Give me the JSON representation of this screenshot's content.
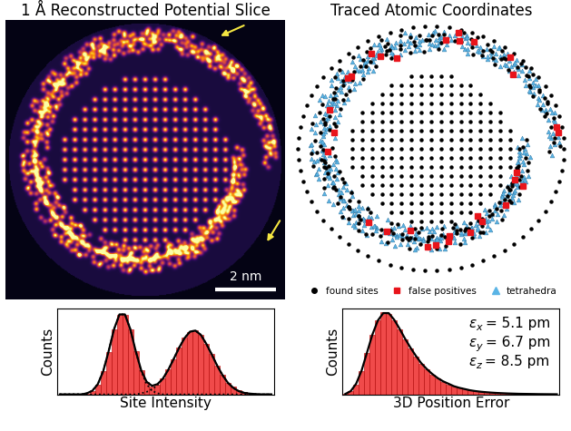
{
  "chart_data": [
    {
      "type": "image",
      "title": "1 Å Reconstructed Potential Slice",
      "annotations": [
        "2 nm"
      ]
    },
    {
      "type": "diagram",
      "title": "Traced Atomic Coordinates",
      "legend": "lower center",
      "series": [
        {
          "name": "found sites",
          "color": "#000000",
          "marker": "circle"
        },
        {
          "name": "false positives",
          "color": "#e8141b",
          "marker": "square"
        },
        {
          "name": "tetrahedra",
          "color": "#5ab4e5",
          "marker": "triangle"
        }
      ]
    },
    {
      "type": "histogram",
      "xlabel": "Site Intensity",
      "ylabel": "Counts",
      "color": "#f04a4a",
      "xlim": [
        0,
        1
      ],
      "ylim": [
        0,
        105
      ],
      "tick_labels": false,
      "bins": [
        0,
        0.025,
        0.05,
        0.075,
        0.1,
        0.125,
        0.15,
        0.175,
        0.2,
        0.225,
        0.25,
        0.275,
        0.3,
        0.325,
        0.35,
        0.375,
        0.4,
        0.425,
        0.45,
        0.475,
        0.5,
        0.525,
        0.55,
        0.575,
        0.6,
        0.625,
        0.65,
        0.675,
        0.7,
        0.725,
        0.75,
        0.775,
        0.8,
        0.825,
        0.85,
        0.875,
        0.9,
        0.925,
        0.95,
        0.975,
        1.0
      ],
      "counts": [
        0,
        0,
        0,
        0,
        1,
        1,
        4,
        12,
        28,
        52,
        79,
        97,
        97,
        79,
        53,
        29,
        15,
        10,
        12,
        19,
        30,
        43,
        57,
        69,
        76,
        78,
        73,
        62,
        49,
        35,
        24,
        14,
        9,
        5,
        3,
        2,
        1,
        1,
        0,
        0
      ],
      "series": [
        {
          "type": "line",
          "line_style": "dotted",
          "color": "#000000",
          "x": [
            0.0125,
            0.0375,
            0.0625,
            0.0875,
            0.1125,
            0.1375,
            0.1625,
            0.1875,
            0.2125,
            0.2375,
            0.2625,
            0.2875,
            0.3125,
            0.3375,
            0.3625,
            0.3875,
            0.4125,
            0.4375,
            0.4625,
            0.4875,
            0.5125,
            0.5375,
            0.5625,
            0.5875,
            0.6125,
            0.6375,
            0.6625,
            0.6875,
            0.7125,
            0.7375,
            0.7625,
            0.7875,
            0.8125,
            0.8375,
            0.8625,
            0.8875,
            0.9125,
            0.9375,
            0.9625,
            0.9875
          ],
          "values": [
            0,
            0,
            0,
            0,
            0,
            1.3,
            4.4,
            12.4,
            28.2,
            52.5,
            79.4,
            97.4,
            97.4,
            79.4,
            52.5,
            28.2,
            12.4,
            4.4,
            1.3,
            0,
            0,
            0,
            0,
            0,
            0,
            0,
            0,
            0,
            0,
            0,
            0,
            0,
            0,
            0,
            0,
            0,
            0,
            0,
            0,
            0
          ]
        },
        {
          "type": "line",
          "line_style": "dotted",
          "color": "#000000",
          "x": [
            0.0125,
            0.0375,
            0.0625,
            0.0875,
            0.1125,
            0.1375,
            0.1625,
            0.1875,
            0.2125,
            0.2375,
            0.2625,
            0.2875,
            0.3125,
            0.3375,
            0.3625,
            0.3875,
            0.4125,
            0.4375,
            0.4625,
            0.4875,
            0.5125,
            0.5375,
            0.5625,
            0.5875,
            0.6125,
            0.6375,
            0.6625,
            0.6875,
            0.7125,
            0.7375,
            0.7625,
            0.7875,
            0.8125,
            0.8375,
            0.8625,
            0.8875,
            0.9125,
            0.9375,
            0.9625,
            0.9875
          ],
          "values": [
            0,
            0,
            0,
            0,
            0,
            0,
            0,
            0,
            0,
            0,
            0,
            0,
            0,
            0,
            0,
            1.3,
            3.0,
            6.0,
            11.2,
            19.1,
            30.0,
            43.2,
            56.9,
            68.6,
            76.4,
            77.7,
            72.5,
            61.6,
            48.8,
            35.1,
            23.4,
            14.0,
            7.8,
            3.9,
            1.8,
            0.9,
            0.4,
            0,
            0,
            0
          ]
        },
        {
          "type": "line",
          "line_style": "solid",
          "color": "#000000",
          "x": [
            0.0125,
            0.0375,
            0.0625,
            0.0875,
            0.1125,
            0.1375,
            0.1625,
            0.1875,
            0.2125,
            0.2375,
            0.2625,
            0.2875,
            0.3125,
            0.3375,
            0.3625,
            0.3875,
            0.4125,
            0.4375,
            0.4625,
            0.4875,
            0.5125,
            0.5375,
            0.5625,
            0.5875,
            0.6125,
            0.6375,
            0.6625,
            0.6875,
            0.7125,
            0.7375,
            0.7625,
            0.7875,
            0.8125,
            0.8375,
            0.8625,
            0.8875,
            0.9125,
            0.9375,
            0.9625,
            0.9875
          ],
          "values": [
            0,
            0,
            0,
            0,
            0,
            1.3,
            4.4,
            12.4,
            28.2,
            52.5,
            79.4,
            97.4,
            97.4,
            79.4,
            52.5,
            29.5,
            15.4,
            10.4,
            12.5,
            19.1,
            30.0,
            43.2,
            56.9,
            68.6,
            76.4,
            77.7,
            72.5,
            61.6,
            48.8,
            35.1,
            23.4,
            14.0,
            7.8,
            3.9,
            1.8,
            0.9,
            0.4,
            0,
            0,
            0
          ]
        }
      ]
    },
    {
      "type": "histogram",
      "xlabel": "3D Position Error",
      "ylabel": "Counts",
      "color": "#f04a4a",
      "xlim": [
        0,
        1
      ],
      "ylim": [
        0,
        105
      ],
      "tick_labels": false,
      "bins": [
        0,
        0.025,
        0.05,
        0.075,
        0.1,
        0.125,
        0.15,
        0.175,
        0.2,
        0.225,
        0.25,
        0.275,
        0.3,
        0.325,
        0.35,
        0.375,
        0.4,
        0.425,
        0.45,
        0.475,
        0.5,
        0.525,
        0.55,
        0.575,
        0.6,
        0.625,
        0.65,
        0.675,
        0.7,
        0.725,
        0.75,
        0.775,
        0.8,
        0.825,
        0.85,
        0.875,
        0.9,
        0.925,
        0.95,
        0.975,
        1.0
      ],
      "counts": [
        1,
        4,
        12,
        28,
        50,
        72,
        90,
        100,
        98,
        90,
        79,
        67,
        56,
        46,
        37,
        30,
        24,
        19,
        15,
        12,
        10,
        8,
        6,
        5,
        4,
        3,
        3,
        2,
        2,
        2,
        1,
        1,
        1,
        1,
        1,
        0,
        0,
        0,
        0,
        0
      ],
      "series": [
        {
          "type": "line",
          "line_style": "solid",
          "color": "#000000",
          "x": [
            0.0125,
            0.0375,
            0.0625,
            0.0875,
            0.1125,
            0.1375,
            0.1625,
            0.1875,
            0.2125,
            0.2375,
            0.2625,
            0.2875,
            0.3125,
            0.3375,
            0.3625,
            0.3875,
            0.4125,
            0.4375,
            0.4625,
            0.4875,
            0.5125,
            0.5375,
            0.5625,
            0.5875,
            0.6125,
            0.6375,
            0.6625,
            0.6875,
            0.7125,
            0.7375,
            0.7625,
            0.7875,
            0.8125,
            0.8375,
            0.8625,
            0.8875,
            0.9125,
            0.9375,
            0.9625,
            0.9875
          ],
          "values": [
            0.5,
            4,
            13,
            29,
            51,
            73,
            90,
            99,
            99,
            91,
            80,
            68,
            57,
            47,
            38,
            31,
            25,
            20,
            16,
            13,
            10,
            8,
            6.5,
            5,
            4,
            3.2,
            2.6,
            2.1,
            1.7,
            1.4,
            1.1,
            0.9,
            0.7,
            0.6,
            0.5,
            0.4,
            0.3,
            0.25,
            0.2,
            0.15
          ]
        }
      ],
      "annotations": [
        {
          "symbol": "ε",
          "subscript": "x",
          "text": "= 5.1 pm"
        },
        {
          "symbol": "ε",
          "subscript": "y",
          "text": "= 6.7 pm"
        },
        {
          "symbol": "ε",
          "subscript": "z",
          "text": "= 8.5 pm"
        }
      ]
    }
  ]
}
